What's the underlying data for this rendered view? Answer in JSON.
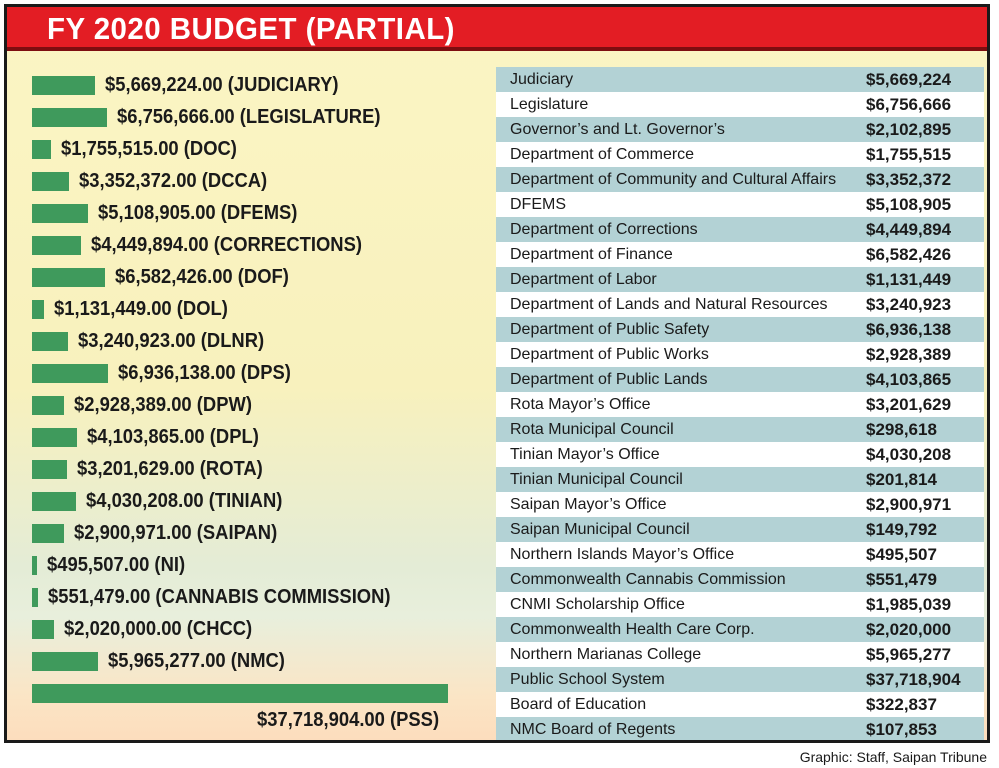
{
  "title": "FY 2020 BUDGET (PARTIAL)",
  "credit": "Graphic: Staff, Saipan Tribune",
  "colors": {
    "title_bar": "#e31d24",
    "bar": "#3f9a5c",
    "row_alt": "#b3d2d5"
  },
  "chart_data": [
    {
      "type": "bar",
      "orientation": "horizontal",
      "title": "FY 2020 BUDGET (PARTIAL)",
      "categories": [
        "JUDICIARY",
        "LEGISLATURE",
        "DOC",
        "DCCA",
        "DFEMS",
        "CORRECTIONS",
        "DOF",
        "DOL",
        "DLNR",
        "DPS",
        "DPW",
        "DPL",
        "ROTA",
        "TINIAN",
        "SAIPAN",
        "NI",
        "CANNABIS COMMISSION",
        "CHCC",
        "NMC",
        "PSS"
      ],
      "values": [
        5669224,
        6756666,
        1755515,
        3352372,
        5108905,
        4449894,
        6582426,
        1131449,
        3240923,
        6936138,
        2928389,
        4103865,
        3201629,
        4030208,
        2900971,
        495507,
        551479,
        2020000,
        5965277,
        37718904
      ],
      "labels": [
        "$5,669,224.00 (JUDICIARY)",
        "$6,756,666.00 (LEGISLATURE)",
        "$1,755,515.00 (DOC)",
        "$3,352,372.00 (DCCA)",
        "$5,108,905.00 (DFEMS)",
        "$4,449,894.00 (CORRECTIONS)",
        "$6,582,426.00 (DOF)",
        "$1,131,449.00 (DOL)",
        "$3,240,923.00 (DLNR)",
        "$6,936,138.00 (DPS)",
        "$2,928,389.00 (DPW)",
        "$4,103,865.00 (DPL)",
        "$3,201,629.00 (ROTA)",
        "$4,030,208.00 (TINIAN)",
        "$2,900,971.00 (SAIPAN)",
        "$495,507.00 (NI)",
        "$551,479.00 (CANNABIS COMMISSION)",
        "$2,020,000.00 (CHCC)",
        "$5,965,277.00 (NMC)",
        "$37,718,904.00 (PSS)"
      ],
      "xlim": [
        0,
        37718904
      ]
    },
    {
      "type": "table",
      "rows": [
        {
          "name": "Judiciary",
          "value": "$5,669,224"
        },
        {
          "name": "Legislature",
          "value": "$6,756,666"
        },
        {
          "name": "Governor’s and Lt. Governor’s",
          "value": "$2,102,895"
        },
        {
          "name": "Department of Commerce",
          "value": "$1,755,515"
        },
        {
          "name": "Department of Community and Cultural Affairs",
          "value": "$3,352,372"
        },
        {
          "name": "DFEMS",
          "value": "$5,108,905"
        },
        {
          "name": "Department of Corrections",
          "value": "$4,449,894"
        },
        {
          "name": "Department of Finance",
          "value": "$6,582,426"
        },
        {
          "name": "Department of Labor",
          "value": "$1,131,449"
        },
        {
          "name": "Department of Lands and Natural Resources",
          "value": "$3,240,923"
        },
        {
          "name": "Department of Public Safety",
          "value": "$6,936,138"
        },
        {
          "name": "Department of Public Works",
          "value": "$2,928,389"
        },
        {
          "name": "Department of Public Lands",
          "value": "$4,103,865"
        },
        {
          "name": "Rota Mayor’s Office",
          "value": "$3,201,629"
        },
        {
          "name": "Rota Municipal Council",
          "value": "$298,618"
        },
        {
          "name": "Tinian Mayor’s Office",
          "value": "$4,030,208"
        },
        {
          "name": "Tinian Municipal Council",
          "value": "$201,814"
        },
        {
          "name": "Saipan Mayor’s Office",
          "value": "$2,900,971"
        },
        {
          "name": "Saipan Municipal Council",
          "value": "$149,792"
        },
        {
          "name": "Northern Islands Mayor’s Office",
          "value": "$495,507"
        },
        {
          "name": "Commonwealth Cannabis Commission",
          "value": "$551,479"
        },
        {
          "name": "CNMI Scholarship Office",
          "value": "$1,985,039"
        },
        {
          "name": "Commonwealth Health Care Corp.",
          "value": "$2,020,000"
        },
        {
          "name": "Northern Marianas College",
          "value": "$5,965,277"
        },
        {
          "name": "Public School System",
          "value": "$37,718,904"
        },
        {
          "name": "Board of Education",
          "value": "$322,837"
        },
        {
          "name": "NMC Board of Regents",
          "value": "$107,853"
        }
      ]
    }
  ]
}
